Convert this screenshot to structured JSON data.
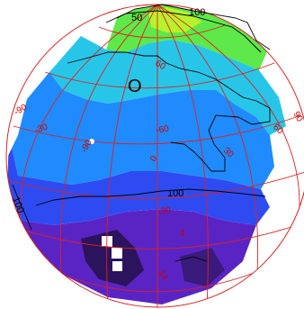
{
  "map": {
    "colors": {
      "grid_lines": "#e02020",
      "contours": "#000000",
      "background": "#ffffff",
      "palette": [
        "#3a1a7a",
        "#5a22c8",
        "#3b3cf0",
        "#1f7bff",
        "#22c7e6",
        "#33e89a",
        "#8af23a"
      ]
    },
    "region_label": "O",
    "contour_labels": [
      "100",
      "100",
      "100",
      "50"
    ],
    "grid_labels": [
      "60",
      "-90",
      "-90",
      "-30",
      "0",
      "30",
      "60",
      "90",
      "-60",
      "-30",
      "4",
      "14"
    ]
  }
}
